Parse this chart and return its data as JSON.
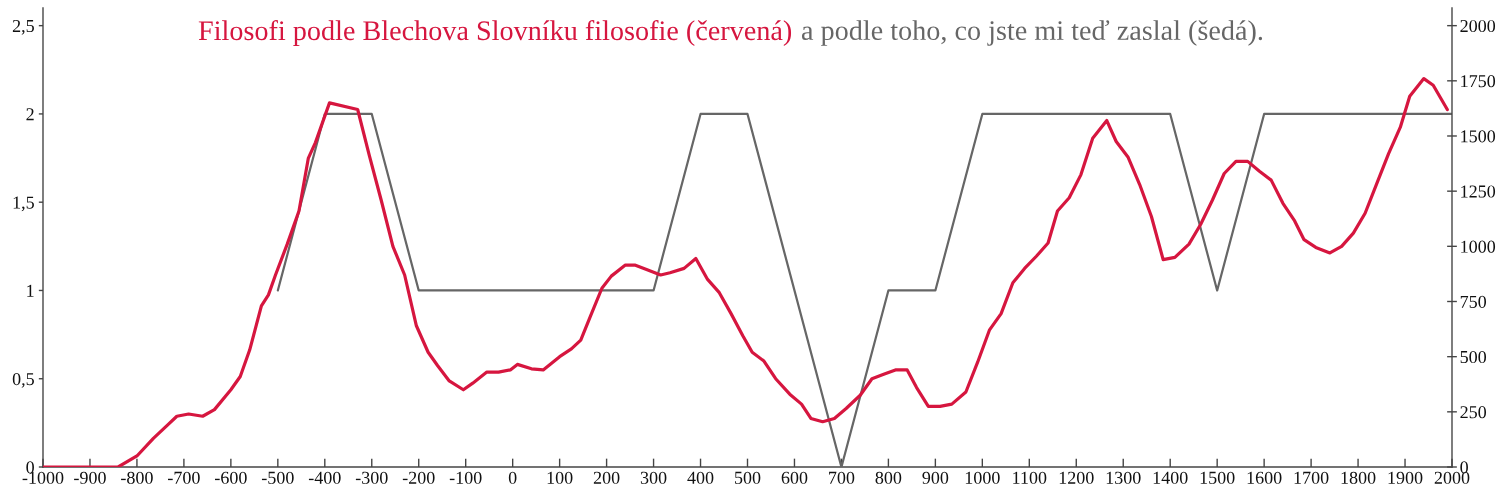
{
  "chart_data": {
    "type": "line",
    "title": "Filosofi podle Blechova Slovníku filosofie (červená)",
    "subtitle": "a podle toho, co jste mi teď zaslal (šedá).",
    "xlim": [
      -1000,
      2000
    ],
    "xticks": [
      -1000,
      -900,
      -800,
      -700,
      -600,
      -500,
      -400,
      -300,
      -200,
      -100,
      0,
      100,
      200,
      300,
      400,
      500,
      600,
      700,
      800,
      900,
      1000,
      1100,
      1200,
      1300,
      1400,
      1500,
      1600,
      1700,
      1800,
      1900,
      2000
    ],
    "ylim": [
      0,
      2.6
    ],
    "yticks": [
      0,
      {
        "value": 0.5,
        "label": "0,5"
      },
      1,
      {
        "value": 1.5,
        "label": "1,5"
      },
      2,
      {
        "value": 2.5,
        "label": "2,5"
      }
    ],
    "y2lim": [
      0,
      2080
    ],
    "y2ticks": [
      0,
      250,
      500,
      750,
      1000,
      1250,
      1500,
      1750,
      2000
    ],
    "line_style": "solid",
    "series": [
      {
        "color": "#d6163f",
        "axis": "y2",
        "x": [
          -1000,
          -860,
          -840,
          -800,
          -765,
          -735,
          -715,
          -690,
          -660,
          -635,
          -600,
          -580,
          -560,
          -535,
          -520,
          -505,
          -480,
          -455,
          -435,
          -420,
          -390,
          -330,
          -305,
          -280,
          -255,
          -230,
          -205,
          -180,
          -160,
          -135,
          -105,
          -85,
          -55,
          -30,
          -5,
          10,
          40,
          65,
          100,
          125,
          145,
          165,
          190,
          210,
          240,
          260,
          285,
          315,
          335,
          365,
          390,
          415,
          440,
          465,
          490,
          510,
          535,
          560,
          590,
          615,
          635,
          660,
          685,
          710,
          740,
          765,
          790,
          815,
          840,
          860,
          885,
          910,
          935,
          965,
          990,
          1015,
          1040,
          1065,
          1090,
          1115,
          1140,
          1160,
          1185,
          1210,
          1235,
          1265,
          1285,
          1310,
          1335,
          1360,
          1385,
          1410,
          1440,
          1465,
          1490,
          1515,
          1540,
          1565,
          1590,
          1615,
          1640,
          1665,
          1685,
          1710,
          1740,
          1765,
          1790,
          1815,
          1840,
          1865,
          1890,
          1910,
          1940,
          1960,
          1990
        ],
        "values": [
          0,
          0,
          0,
          50,
          130,
          190,
          230,
          240,
          230,
          260,
          350,
          410,
          530,
          730,
          780,
          870,
          1010,
          1160,
          1400,
          1470,
          1650,
          1620,
          1410,
          1210,
          1000,
          870,
          640,
          520,
          460,
          390,
          350,
          380,
          430,
          430,
          440,
          465,
          445,
          440,
          500,
          535,
          575,
          680,
          810,
          865,
          915,
          915,
          895,
          870,
          880,
          900,
          945,
          850,
          790,
          695,
          595,
          520,
          480,
          400,
          330,
          285,
          220,
          205,
          220,
          265,
          325,
          400,
          420,
          440,
          440,
          360,
          275,
          275,
          285,
          340,
          475,
          620,
          695,
          835,
          900,
          955,
          1015,
          1160,
          1220,
          1325,
          1490,
          1570,
          1475,
          1405,
          1280,
          1135,
          940,
          950,
          1010,
          1100,
          1210,
          1330,
          1385,
          1385,
          1340,
          1300,
          1195,
          1115,
          1030,
          995,
          970,
          1000,
          1060,
          1150,
          1285,
          1420,
          1540,
          1680,
          1760,
          1730,
          1620
        ]
      },
      {
        "color": "#666666",
        "axis": "y",
        "x": [
          -500,
          -400,
          -300,
          -200,
          300,
          400,
          500,
          700,
          800,
          900,
          1000,
          1400,
          1500,
          1600,
          2000
        ],
        "values": [
          1,
          2,
          2,
          1,
          1,
          2,
          2,
          0,
          1,
          1,
          2,
          2,
          1,
          2,
          2
        ]
      }
    ]
  }
}
